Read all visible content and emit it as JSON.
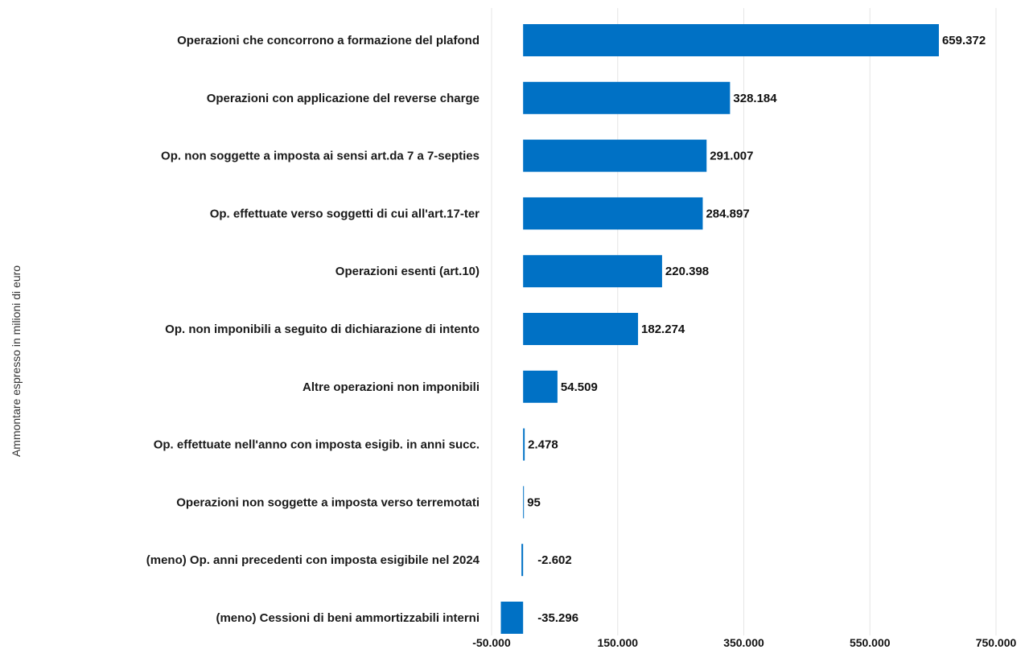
{
  "chart_data": {
    "type": "bar",
    "orientation": "horizontal",
    "ylabel": "Ammontare espresso in milioni di euro",
    "categories": [
      "Operazioni che concorrono a formazione del plafond",
      "Operazioni con applicazione del reverse charge",
      "Op. non soggette a imposta ai sensi art.da 7 a 7-septies",
      "Op. effettuate verso soggetti di cui all'art.17-ter",
      "Operazioni esenti (art.10)",
      "Op. non imponibili a seguito di dichiarazione di intento",
      "Altre operazioni non imponibili",
      "Op. effettuate nell'anno con imposta esigib. in anni succ.",
      "Operazioni non soggette a imposta verso terremotati",
      "(meno) Op. anni precedenti con imposta esigibile nel 2024",
      "(meno) Cessioni di beni ammortizzabili interni"
    ],
    "values": [
      659372,
      328184,
      291007,
      284897,
      220398,
      182274,
      54509,
      2478,
      95,
      -2602,
      -35296
    ],
    "value_labels": [
      "659.372",
      "328.184",
      "291.007",
      "284.897",
      "220.398",
      "182.274",
      "54.509",
      "2.478",
      "95",
      "-2.602",
      "-35.296"
    ],
    "xlim": [
      -50000,
      750000
    ],
    "xticks": [
      -50000,
      150000,
      350000,
      550000,
      750000
    ],
    "xtick_labels": [
      "-50.000",
      "150.000",
      "350.000",
      "550.000",
      "750.000"
    ],
    "grid": true,
    "legend": "none",
    "bar_color": "#0071c5"
  }
}
